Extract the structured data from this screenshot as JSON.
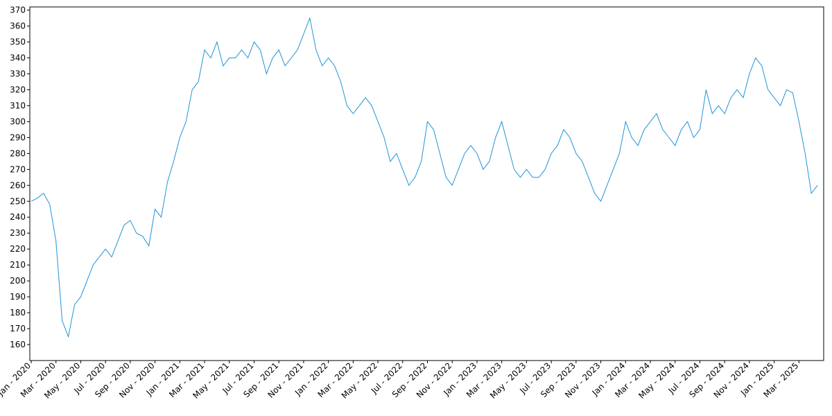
{
  "chart_data": {
    "type": "line",
    "categories": [
      "Jan - 2020",
      null,
      null,
      null,
      "Mar - 2020",
      null,
      null,
      null,
      "May - 2020",
      null,
      null,
      null,
      "Jul - 2020",
      null,
      null,
      null,
      "Sep - 2020",
      null,
      null,
      null,
      "Nov - 2020",
      null,
      null,
      null,
      "Jan - 2021",
      null,
      null,
      null,
      "Mar - 2021",
      null,
      null,
      null,
      "May - 2021",
      null,
      null,
      null,
      "Jul - 2021",
      null,
      null,
      null,
      "Sep - 2021",
      null,
      null,
      null,
      "Nov - 2021",
      null,
      null,
      null,
      "Jan - 2022",
      null,
      null,
      null,
      "Mar - 2022",
      null,
      null,
      null,
      "May - 2022",
      null,
      null,
      null,
      "Jul - 2022",
      null,
      null,
      null,
      "Sep - 2022",
      null,
      null,
      null,
      "Nov - 2022",
      null,
      null,
      null,
      "Jan - 2023",
      null,
      null,
      null,
      "Mar - 2023",
      null,
      null,
      null,
      "May - 2023",
      null,
      null,
      null,
      "Jul - 2023",
      null,
      null,
      null,
      "Sep - 2023",
      null,
      null,
      null,
      "Nov - 2023",
      null,
      null,
      null,
      "Jan - 2024",
      null,
      null,
      null,
      "Mar - 2024",
      null,
      null,
      null,
      "May - 2024",
      null,
      null,
      null,
      "Jul - 2024",
      null,
      null,
      null,
      "Sep - 2024",
      null,
      null,
      null,
      "Nov - 2024",
      null,
      null,
      null,
      "Jan - 2025",
      null,
      null,
      null,
      "Mar - 2025",
      null,
      null,
      null
    ],
    "values": [
      250,
      252,
      255,
      248,
      225,
      175,
      165,
      185,
      190,
      200,
      210,
      215,
      220,
      215,
      225,
      235,
      238,
      230,
      228,
      222,
      245,
      240,
      262,
      275,
      290,
      300,
      320,
      325,
      345,
      340,
      350,
      335,
      340,
      340,
      345,
      340,
      350,
      345,
      330,
      340,
      345,
      335,
      340,
      345,
      355,
      365,
      345,
      335,
      340,
      335,
      325,
      310,
      305,
      310,
      315,
      310,
      300,
      290,
      275,
      280,
      270,
      260,
      265,
      275,
      300,
      295,
      280,
      265,
      260,
      270,
      280,
      285,
      280,
      270,
      275,
      290,
      300,
      285,
      270,
      265,
      270,
      265,
      265,
      270,
      280,
      285,
      295,
      290,
      280,
      275,
      265,
      255,
      250,
      260,
      270,
      280,
      300,
      290,
      285,
      295,
      300,
      305,
      295,
      290,
      285,
      295,
      300,
      290,
      295,
      320,
      305,
      310,
      305,
      315,
      320,
      315,
      330,
      340,
      335,
      320,
      315,
      310,
      320,
      318,
      300,
      280,
      255,
      260
    ],
    "color": "#1f93d6",
    "ylim": [
      150,
      372
    ],
    "yticks": [
      160,
      170,
      180,
      190,
      200,
      210,
      220,
      230,
      240,
      250,
      260,
      270,
      280,
      290,
      300,
      310,
      320,
      330,
      340,
      350,
      360,
      370
    ]
  }
}
